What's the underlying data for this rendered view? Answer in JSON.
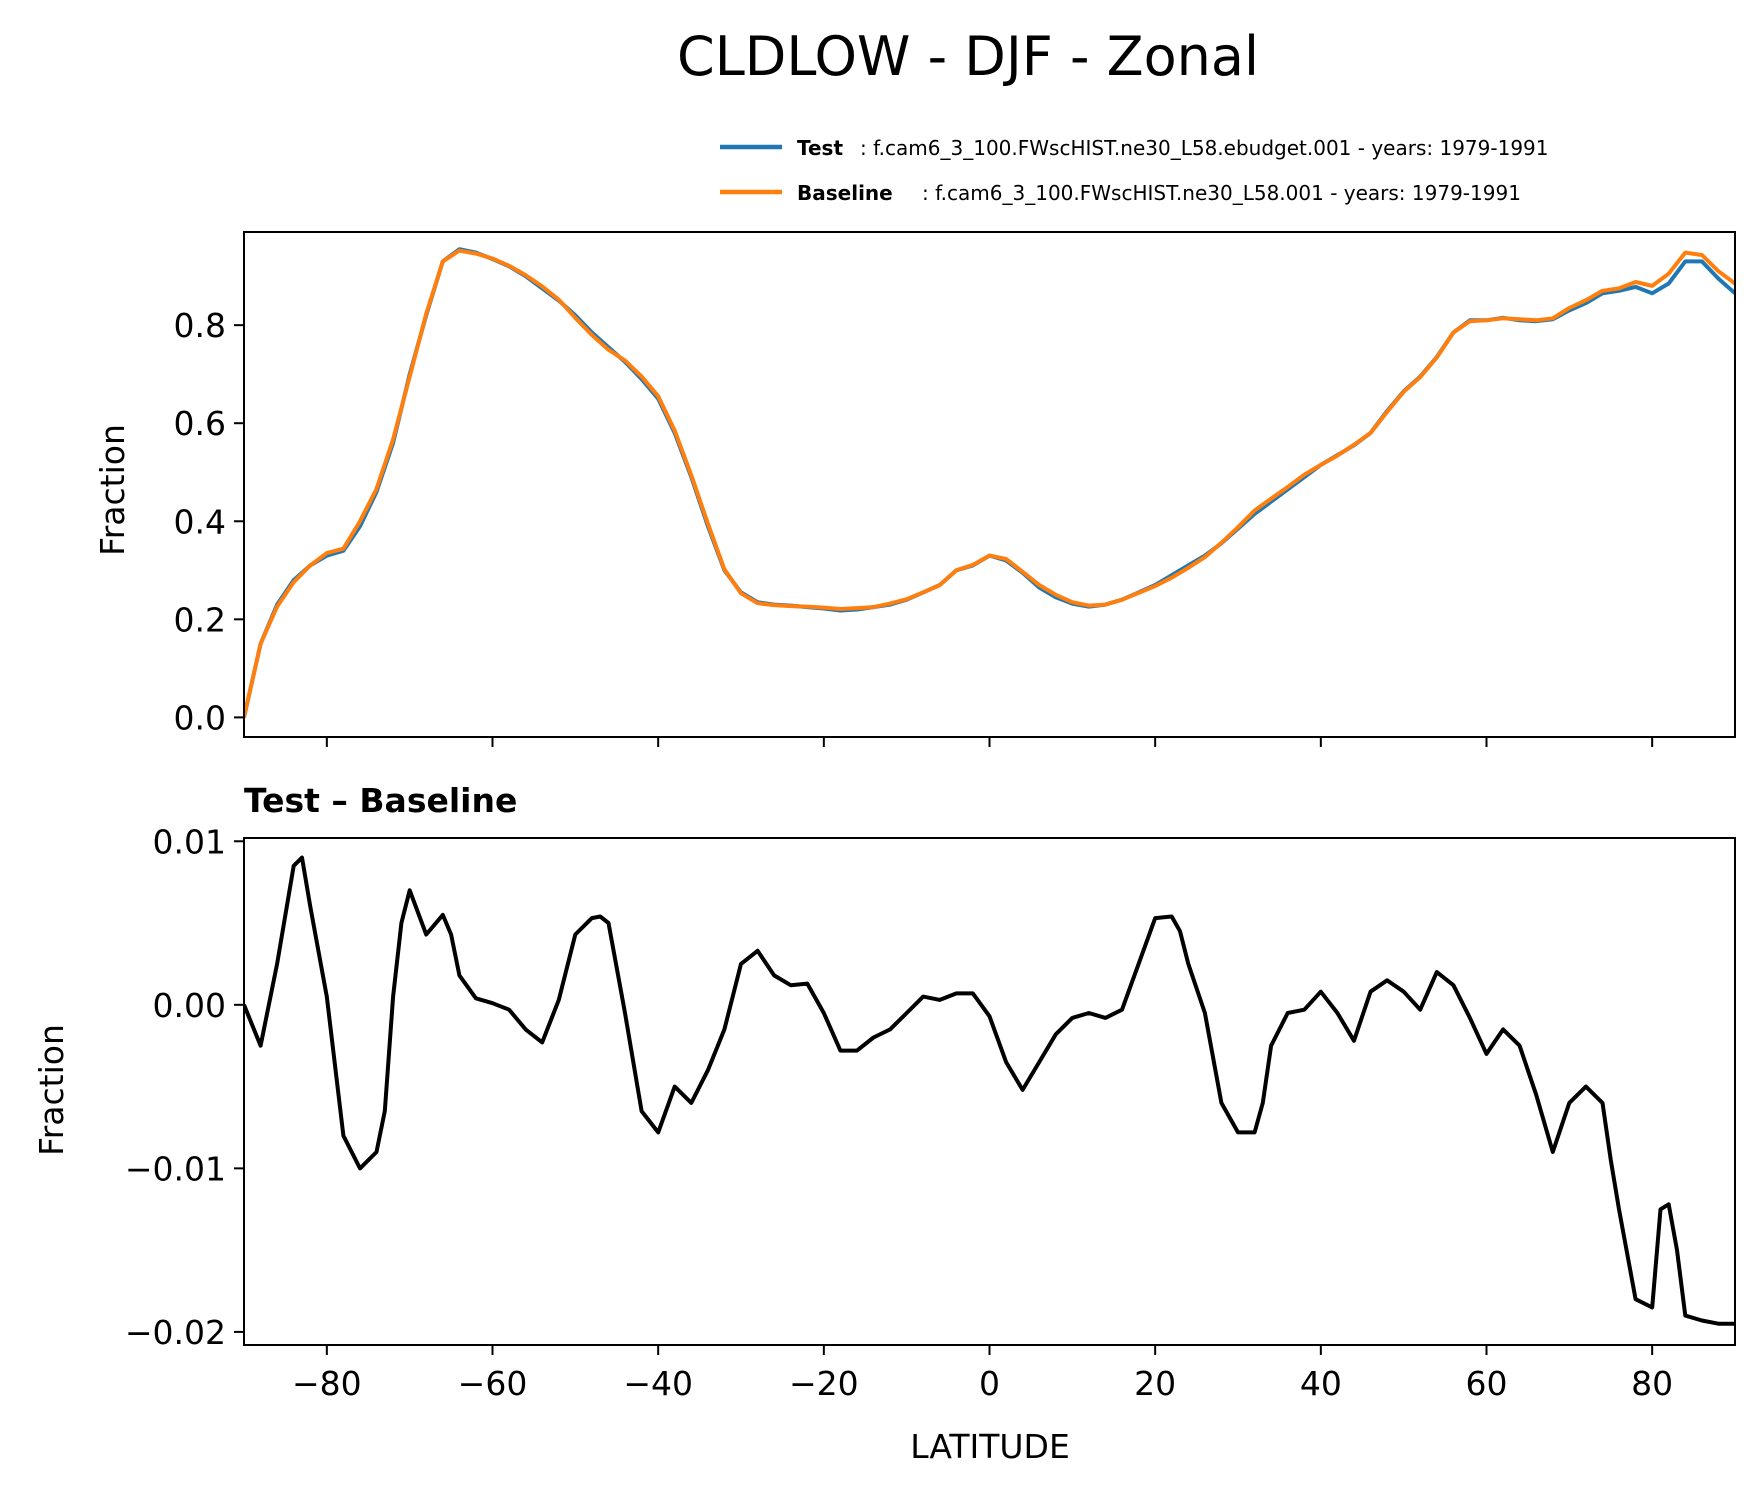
{
  "chart_data": [
    {
      "type": "line",
      "title": "CLDLOW - DJF - Zonal",
      "xlabel": "",
      "ylabel": "Fraction",
      "xlim": [
        -90,
        90
      ],
      "ylim": [
        -0.04,
        0.99
      ],
      "xticks": [
        -80,
        -60,
        -40,
        -20,
        0,
        20,
        40,
        60,
        80
      ],
      "yticks": [
        0.0,
        0.2,
        0.4,
        0.6,
        0.8
      ],
      "ytick_labels": [
        "0.0",
        "0.2",
        "0.4",
        "0.6",
        "0.8"
      ],
      "grid": false,
      "legend_position": "top-right",
      "x": [
        -90,
        -88,
        -86,
        -84,
        -82,
        -80,
        -78,
        -76,
        -74,
        -72,
        -70,
        -68,
        -66,
        -64,
        -62,
        -60,
        -58,
        -56,
        -54,
        -52,
        -50,
        -48,
        -46,
        -44,
        -42,
        -40,
        -38,
        -36,
        -34,
        -32,
        -30,
        -28,
        -26,
        -24,
        -22,
        -20,
        -18,
        -16,
        -14,
        -12,
        -10,
        -8,
        -6,
        -4,
        -2,
        0,
        2,
        4,
        6,
        8,
        10,
        12,
        14,
        16,
        18,
        20,
        22,
        24,
        26,
        28,
        30,
        32,
        34,
        36,
        38,
        40,
        42,
        44,
        46,
        48,
        50,
        52,
        54,
        56,
        58,
        60,
        62,
        64,
        66,
        68,
        70,
        72,
        74,
        76,
        78,
        80,
        82,
        84,
        86,
        88,
        90
      ],
      "series": [
        {
          "name": "Test",
          "label_detail": ": f.cam6_3_100.FWscHIST.ne30_L58.ebudget.001 - years: 1979-1991",
          "color": "#1f77b4",
          "values": [
            0.0,
            0.15,
            0.23,
            0.28,
            0.31,
            0.33,
            0.34,
            0.39,
            0.46,
            0.56,
            0.7,
            0.82,
            0.93,
            0.955,
            0.948,
            0.935,
            0.92,
            0.9,
            0.875,
            0.85,
            0.82,
            0.785,
            0.755,
            0.725,
            0.69,
            0.65,
            0.58,
            0.49,
            0.39,
            0.3,
            0.255,
            0.235,
            0.23,
            0.228,
            0.225,
            0.222,
            0.218,
            0.22,
            0.225,
            0.23,
            0.24,
            0.255,
            0.27,
            0.3,
            0.31,
            0.33,
            0.32,
            0.295,
            0.265,
            0.245,
            0.232,
            0.226,
            0.23,
            0.24,
            0.255,
            0.27,
            0.29,
            0.31,
            0.33,
            0.355,
            0.385,
            0.415,
            0.44,
            0.465,
            0.49,
            0.515,
            0.535,
            0.555,
            0.58,
            0.625,
            0.665,
            0.695,
            0.735,
            0.785,
            0.81,
            0.81,
            0.815,
            0.81,
            0.808,
            0.812,
            0.83,
            0.845,
            0.865,
            0.87,
            0.878,
            0.865,
            0.885,
            0.93,
            0.93,
            0.895,
            0.865
          ]
        },
        {
          "name": "Baseline",
          "label_detail": ": f.cam6_3_100.FWscHIST.ne30_L58.001 - years: 1979-1991",
          "color": "#ff7f0e",
          "values": [
            0.0,
            0.15,
            0.226,
            0.276,
            0.31,
            0.335,
            0.344,
            0.4,
            0.466,
            0.567,
            0.695,
            0.823,
            0.93,
            0.952,
            0.946,
            0.936,
            0.921,
            0.902,
            0.879,
            0.852,
            0.815,
            0.78,
            0.75,
            0.728,
            0.695,
            0.655,
            0.585,
            0.494,
            0.395,
            0.302,
            0.253,
            0.233,
            0.229,
            0.227,
            0.226,
            0.224,
            0.221,
            0.223,
            0.225,
            0.232,
            0.241,
            0.255,
            0.27,
            0.3,
            0.311,
            0.33,
            0.323,
            0.297,
            0.27,
            0.25,
            0.235,
            0.228,
            0.23,
            0.24,
            0.254,
            0.268,
            0.285,
            0.305,
            0.327,
            0.356,
            0.388,
            0.422,
            0.446,
            0.47,
            0.495,
            0.515,
            0.534,
            0.556,
            0.58,
            0.623,
            0.664,
            0.694,
            0.734,
            0.785,
            0.808,
            0.81,
            0.814,
            0.812,
            0.81,
            0.814,
            0.835,
            0.851,
            0.87,
            0.875,
            0.888,
            0.88,
            0.905,
            0.948,
            0.943,
            0.91,
            0.885
          ]
        }
      ]
    },
    {
      "type": "line",
      "title": "Test – Baseline",
      "xlabel": "LATITUDE",
      "ylabel": "Fraction",
      "xlim": [
        -90,
        90
      ],
      "ylim": [
        -0.0208,
        0.0102
      ],
      "xticks": [
        -80,
        -60,
        -40,
        -20,
        0,
        20,
        40,
        60,
        80
      ],
      "xtick_labels": [
        "−80",
        "−60",
        "−40",
        "−20",
        "0",
        "20",
        "40",
        "60",
        "80"
      ],
      "yticks": [
        -0.02,
        -0.01,
        0.0,
        0.01
      ],
      "ytick_labels": [
        "−0.02",
        "−0.01",
        "0.00",
        "0.01"
      ],
      "grid": false,
      "x": [
        -90,
        -88,
        -86,
        -84,
        -83,
        -82,
        -80,
        -78,
        -76,
        -74,
        -73,
        -72,
        -71,
        -70,
        -68,
        -66,
        -65,
        -64,
        -62,
        -60,
        -58,
        -56,
        -54,
        -52,
        -50,
        -48,
        -47,
        -46,
        -44,
        -42,
        -40,
        -38,
        -36,
        -34,
        -32,
        -30,
        -28,
        -26,
        -24,
        -22,
        -20,
        -18,
        -16,
        -14,
        -12,
        -10,
        -8,
        -6,
        -4,
        -2,
        0,
        2,
        4,
        6,
        8,
        10,
        12,
        14,
        16,
        18,
        20,
        22,
        23,
        24,
        26,
        28,
        30,
        32,
        33,
        34,
        36,
        38,
        40,
        42,
        44,
        46,
        48,
        50,
        52,
        54,
        56,
        58,
        60,
        62,
        64,
        66,
        68,
        70,
        72,
        74,
        75,
        76,
        78,
        80,
        81,
        82,
        83,
        84,
        86,
        88,
        90
      ],
      "series": [
        {
          "name": "",
          "color": "#000000",
          "values": [
            0.0,
            -0.0025,
            0.0025,
            0.0085,
            0.009,
            0.006,
            0.0005,
            -0.008,
            -0.01,
            -0.009,
            -0.0065,
            0.0005,
            0.005,
            0.007,
            0.0043,
            0.0055,
            0.0043,
            0.0018,
            0.0004,
            0.0001,
            -0.0003,
            -0.0015,
            -0.0023,
            0.0003,
            0.0043,
            0.0053,
            0.0054,
            0.005,
            -0.0005,
            -0.0065,
            -0.0078,
            -0.005,
            -0.006,
            -0.004,
            -0.0015,
            0.0025,
            0.0033,
            0.0018,
            0.0012,
            0.0013,
            -0.0005,
            -0.0028,
            -0.0028,
            -0.002,
            -0.0015,
            -0.0005,
            0.0005,
            0.0003,
            0.0007,
            0.0007,
            -0.0007,
            -0.0035,
            -0.0052,
            -0.0035,
            -0.0018,
            -0.0008,
            -0.0005,
            -0.0008,
            -0.0003,
            0.0025,
            0.0053,
            0.0054,
            0.0045,
            0.0025,
            -0.0005,
            -0.006,
            -0.0078,
            -0.0078,
            -0.006,
            -0.0025,
            -0.0005,
            -0.0003,
            0.0008,
            -0.0005,
            -0.0022,
            0.0008,
            0.0015,
            0.0008,
            -0.0003,
            0.002,
            0.0012,
            -0.0008,
            -0.003,
            -0.0015,
            -0.0025,
            -0.0055,
            -0.009,
            -0.006,
            -0.005,
            -0.006,
            -0.0095,
            -0.0125,
            -0.018,
            -0.0185,
            -0.0125,
            -0.0122,
            -0.015,
            -0.019,
            -0.0193,
            -0.0195,
            -0.0195
          ]
        }
      ]
    }
  ]
}
